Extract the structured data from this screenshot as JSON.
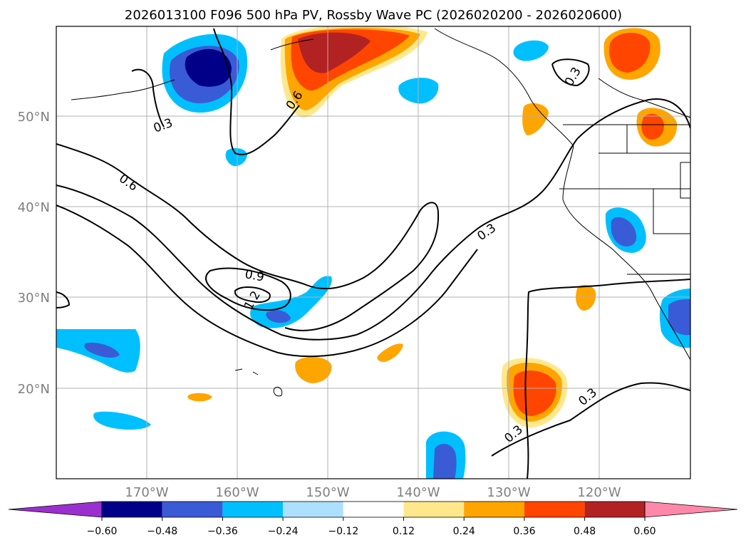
{
  "title": "2026013100 F096 500 hPa PV, Rossby Wave PC (2026020200 - 2026020600)",
  "longitude_labels": [
    "170°W",
    "160°W",
    "150°W",
    "140°W",
    "130°W",
    "120°W"
  ],
  "latitude_labels": [
    "50°N",
    "40°N",
    "30°N",
    "20°N"
  ],
  "colorbar": {
    "ticks": [
      "−0.60",
      "−0.48",
      "−0.36",
      "−0.24",
      "−0.12",
      "0.12",
      "0.24",
      "0.36",
      "0.48",
      "0.60"
    ],
    "colors": [
      "#9b30d0",
      "#000088",
      "#3a5bd6",
      "#00bfff",
      "#addfff",
      "#ffffff",
      "#ffe88c",
      "#ffa500",
      "#ff4500",
      "#b22222",
      "#ff88aa"
    ]
  },
  "contour_labels": [
    "0.3",
    "0.6",
    "0.9",
    "1.2",
    "0.6",
    "0.3",
    "0.3",
    "0.3",
    "0.3"
  ]
}
